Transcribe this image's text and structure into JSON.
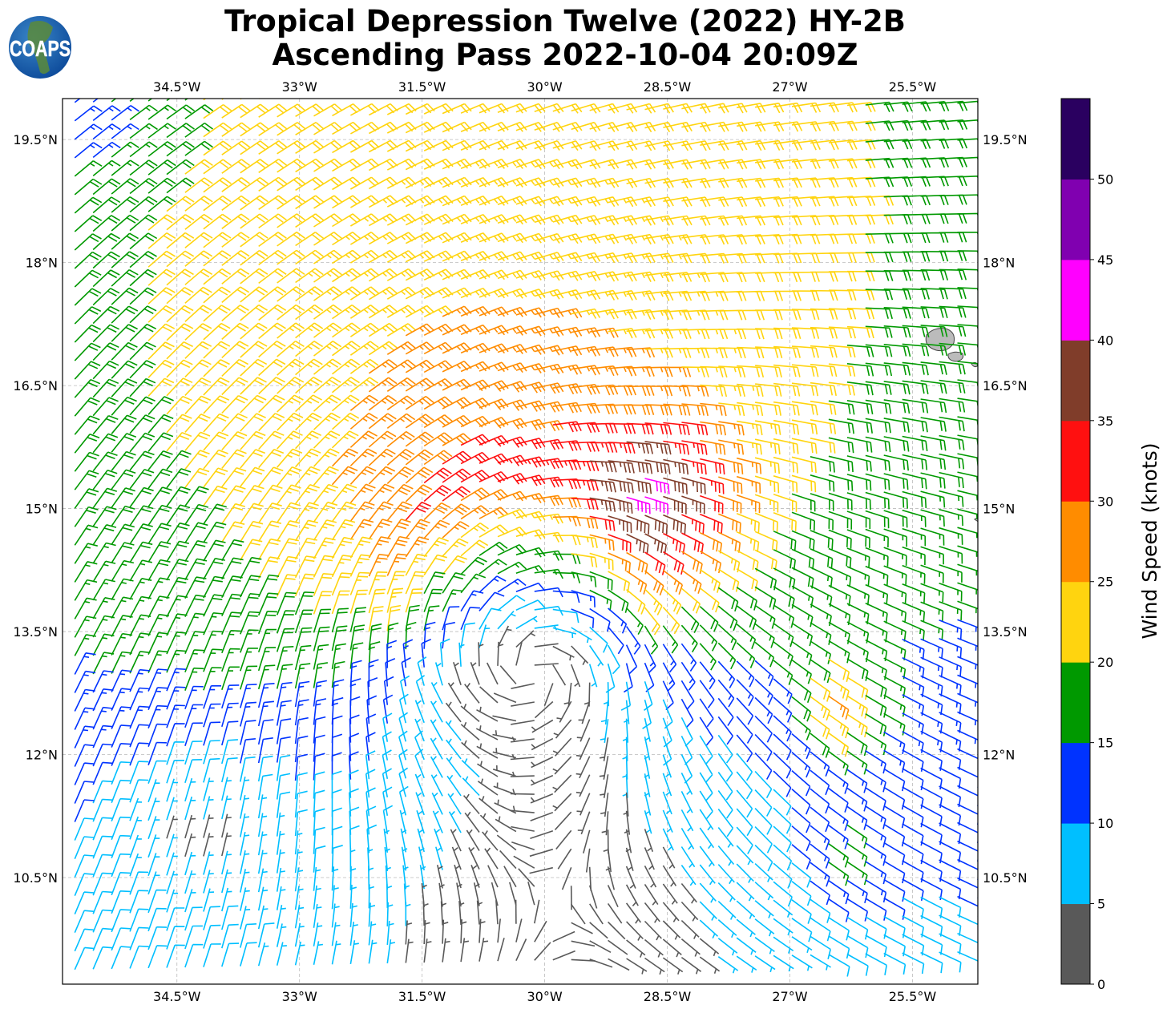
{
  "header": {
    "title_line1": "Tropical Depression Twelve (2022) HY-2B",
    "title_line2": "Ascending Pass 2022-10-04 20:09Z",
    "logo_text": "COAPS"
  },
  "chart_data": {
    "type": "wind-barbs-map",
    "title": "Tropical Depression Twelve (2022) HY-2B Ascending Pass 2022-10-04 20:09Z",
    "lon_ticks": [
      "34.5°W",
      "33°W",
      "31.5°W",
      "30°W",
      "28.5°W",
      "27°W",
      "25.5°W"
    ],
    "lon_values": [
      -34.5,
      -33,
      -31.5,
      -30,
      -28.5,
      -27,
      -25.5
    ],
    "lat_ticks": [
      "19.5°N",
      "18°N",
      "16.5°N",
      "15°N",
      "13.5°N",
      "12°N",
      "10.5°N"
    ],
    "lat_values": [
      19.5,
      18,
      16.5,
      15,
      13.5,
      12,
      10.5
    ],
    "lon_range": [
      -35.9,
      -24.7
    ],
    "lat_range": [
      9.2,
      20.0
    ],
    "grid": true,
    "colorbar": {
      "label": "Wind Speed (knots)",
      "ticks": [
        "0",
        "5",
        "10",
        "15",
        "20",
        "25",
        "30",
        "35",
        "40",
        "45",
        "50"
      ],
      "levels": [
        0,
        5,
        10,
        15,
        20,
        25,
        30,
        35,
        40,
        45,
        50,
        55
      ],
      "colors": [
        "#595959",
        "#00bfff",
        "#0033ff",
        "#009900",
        "#ffd40f",
        "#ff8c00",
        "#ff1010",
        "#803d2a",
        "#ff00ff",
        "#8000b0",
        "#2a0060"
      ]
    }
  }
}
